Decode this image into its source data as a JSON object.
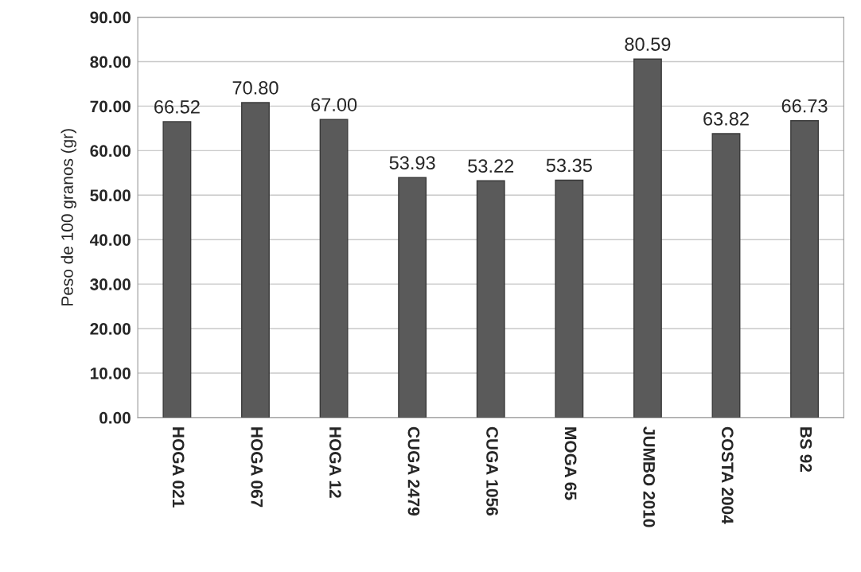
{
  "chart_data": {
    "type": "bar",
    "ylabel": "Peso de 100 granos (gr)",
    "categories": [
      "HOGA 021",
      "HOGA 067",
      "HOGA 12",
      "CUGA 2479",
      "CUGA 1056",
      "MOGA 65",
      "JUMBO 2010",
      "COSTA 2004",
      "BS 92"
    ],
    "values": [
      66.52,
      70.8,
      67.0,
      53.93,
      53.22,
      53.35,
      80.59,
      63.82,
      66.73
    ],
    "value_labels": [
      "66.52",
      "70.80",
      "67.00",
      "53.93",
      "53.22",
      "53.35",
      "80.59",
      "63.82",
      "66.73"
    ],
    "color": "#5a5a5a",
    "ylim": [
      0,
      90
    ],
    "yticks": [
      {
        "value": 0,
        "label": "0.00"
      },
      {
        "value": 10,
        "label": "10.00"
      },
      {
        "value": 20,
        "label": "20.00"
      },
      {
        "value": 30,
        "label": "30.00"
      },
      {
        "value": 40,
        "label": "40.00"
      },
      {
        "value": 50,
        "label": "50.00"
      },
      {
        "value": 60,
        "label": "60.00"
      },
      {
        "value": 70,
        "label": "70.00"
      },
      {
        "value": 80,
        "label": "80.00"
      },
      {
        "value": 90,
        "label": "90.00"
      }
    ],
    "grid": "y"
  }
}
